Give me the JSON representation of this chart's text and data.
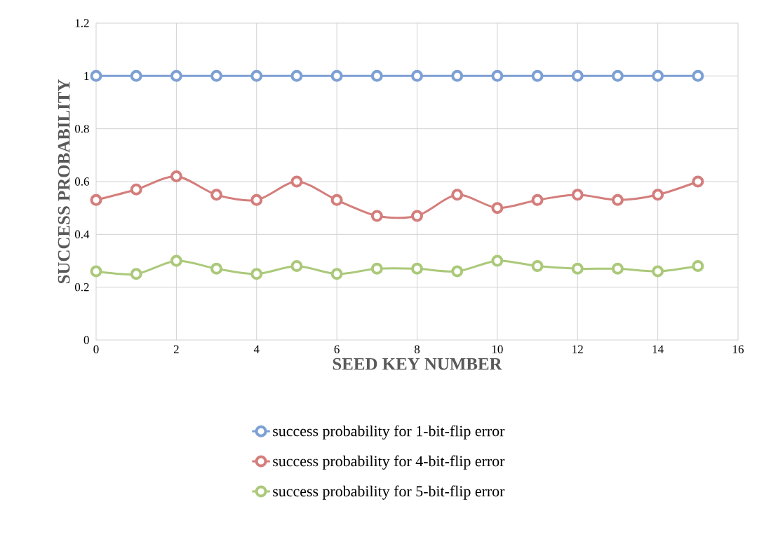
{
  "chart_data": {
    "type": "line",
    "xlabel": "SEED KEY NUMBER",
    "ylabel": "SUCCESS PROBABILITY",
    "x": [
      0,
      1,
      2,
      3,
      4,
      5,
      6,
      7,
      8,
      9,
      10,
      11,
      12,
      13,
      14,
      15
    ],
    "series": [
      {
        "name": "success probability for 1-bit-flip error",
        "color": "#7da0d4",
        "values": [
          1,
          1,
          1,
          1,
          1,
          1,
          1,
          1,
          1,
          1,
          1,
          1,
          1,
          1,
          1,
          1
        ]
      },
      {
        "name": "success probability for 4-bit-flip error",
        "color": "#d47e7c",
        "values": [
          0.53,
          0.57,
          0.62,
          0.55,
          0.53,
          0.6,
          0.53,
          0.47,
          0.47,
          0.55,
          0.5,
          0.53,
          0.55,
          0.53,
          0.55,
          0.6
        ]
      },
      {
        "name": "success probability for 5-bit-flip error",
        "color": "#abc97a",
        "values": [
          0.26,
          0.25,
          0.3,
          0.27,
          0.25,
          0.28,
          0.25,
          0.27,
          0.27,
          0.26,
          0.3,
          0.28,
          0.27,
          0.27,
          0.26,
          0.28
        ]
      }
    ],
    "xlim": [
      0,
      16
    ],
    "xticks": [
      0,
      2,
      4,
      6,
      8,
      10,
      12,
      14,
      16
    ],
    "ylim": [
      0,
      1.2
    ],
    "yticks": [
      0,
      0.2,
      0.4,
      0.6,
      0.8,
      1,
      1.2
    ],
    "grid": true,
    "legend": "bottom",
    "marker": "circle",
    "line_style": "solid"
  }
}
